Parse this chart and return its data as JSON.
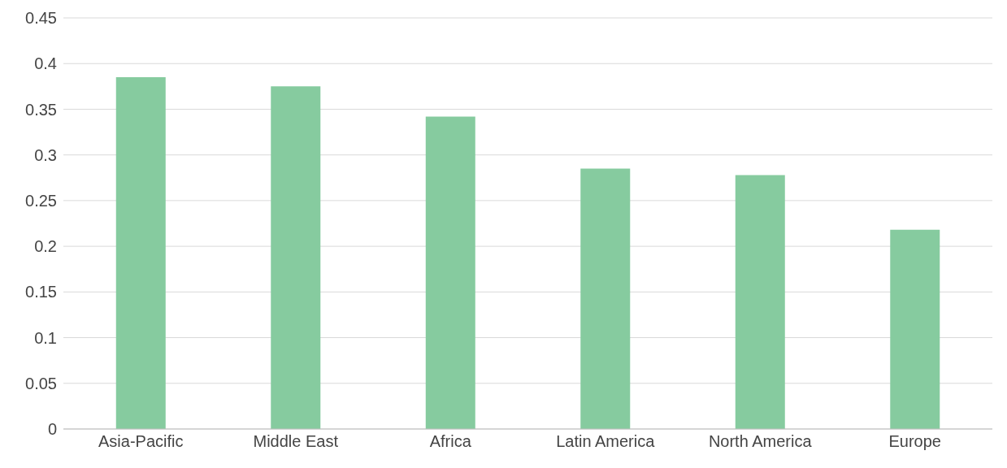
{
  "chart_data": {
    "type": "bar",
    "categories": [
      "Asia-Pacific",
      "Middle East",
      "Africa",
      "Latin America",
      "North America",
      "Europe"
    ],
    "values": [
      0.385,
      0.375,
      0.342,
      0.285,
      0.278,
      0.218
    ],
    "color": "#86cb9f",
    "ylim": [
      0,
      0.45
    ],
    "yticks": [
      0,
      0.05,
      0.1,
      0.15,
      0.2,
      0.25,
      0.3,
      0.35,
      0.4,
      0.45
    ],
    "grid": "y"
  }
}
